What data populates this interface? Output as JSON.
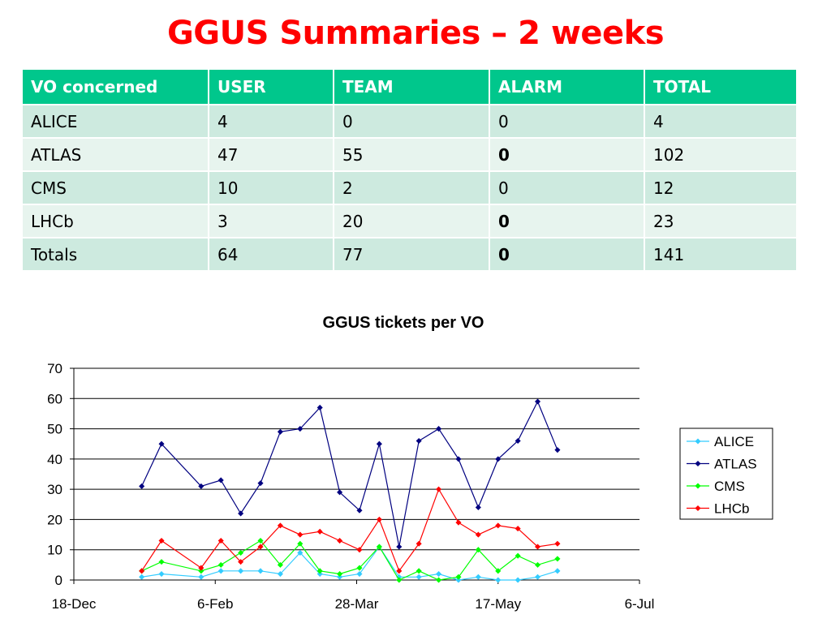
{
  "title": "GGUS Summaries – 2 weeks",
  "table": {
    "headers": [
      "VO concerned",
      "USER",
      "TEAM",
      "ALARM",
      "TOTAL"
    ],
    "rows": [
      {
        "vo": "ALICE",
        "user": "4",
        "team": "0",
        "alarm": "0",
        "total": "4",
        "alarm_bold": false
      },
      {
        "vo": "ATLAS",
        "user": "47",
        "team": "55",
        "alarm": "0",
        "total": "102",
        "alarm_bold": true
      },
      {
        "vo": "CMS",
        "user": "10",
        "team": "2",
        "alarm": "0",
        "total": "12",
        "alarm_bold": false
      },
      {
        "vo": "LHCb",
        "user": "3",
        "team": "20",
        "alarm": "0",
        "total": "23",
        "alarm_bold": true
      },
      {
        "vo": "Totals",
        "user": "64",
        "team": "77",
        "alarm": "0",
        "total": "141",
        "alarm_bold": true
      }
    ]
  },
  "colors": {
    "title": "#ff0000",
    "header_bg": "#00c78c",
    "row_dark": "#cdeadf",
    "row_light": "#e7f4ee",
    "ALICE": "#33ccff",
    "ATLAS": "#000080",
    "CMS": "#00ff00",
    "LHCb": "#ff0000"
  },
  "chart_data": {
    "type": "line",
    "title": "GGUS tickets per VO",
    "xlabel": "",
    "ylabel": "",
    "ylim": [
      0,
      70
    ],
    "yticks": [
      0,
      10,
      20,
      30,
      40,
      50,
      60,
      70
    ],
    "xlim": [
      "2009-12-18",
      "2010-07-06"
    ],
    "xticks": [
      {
        "date": "2009-12-18",
        "label": "18-Dec"
      },
      {
        "date": "2010-02-06",
        "label": "6-Feb"
      },
      {
        "date": "2010-03-28",
        "label": "28-Mar"
      },
      {
        "date": "2010-05-17",
        "label": "17-May"
      },
      {
        "date": "2010-07-06",
        "label": "6-Jul"
      }
    ],
    "grid": true,
    "legend": "right",
    "x": [
      "2010-01-11",
      "2010-01-18",
      "2010-02-01",
      "2010-02-08",
      "2010-02-15",
      "2010-02-22",
      "2010-03-01",
      "2010-03-08",
      "2010-03-15",
      "2010-03-22",
      "2010-03-29",
      "2010-04-05",
      "2010-04-12",
      "2010-04-19",
      "2010-04-26",
      "2010-05-03",
      "2010-05-10",
      "2010-05-17",
      "2010-05-24",
      "2010-05-31",
      "2010-06-07"
    ],
    "series": [
      {
        "name": "ALICE",
        "values": [
          1,
          2,
          1,
          3,
          3,
          3,
          2,
          9,
          2,
          1,
          2,
          11,
          1,
          1,
          2,
          0,
          1,
          0,
          0,
          1,
          3
        ]
      },
      {
        "name": "ATLAS",
        "values": [
          31,
          45,
          31,
          33,
          22,
          32,
          49,
          50,
          57,
          29,
          23,
          45,
          11,
          46,
          50,
          40,
          24,
          40,
          46,
          59,
          43
        ]
      },
      {
        "name": "CMS",
        "values": [
          3,
          6,
          3,
          5,
          9,
          13,
          5,
          12,
          3,
          2,
          4,
          11,
          0,
          3,
          0,
          1,
          10,
          3,
          8,
          5,
          7
        ]
      },
      {
        "name": "LHCb",
        "values": [
          3,
          13,
          4,
          13,
          6,
          11,
          18,
          15,
          16,
          13,
          10,
          20,
          3,
          12,
          30,
          19,
          15,
          18,
          17,
          11,
          12
        ]
      }
    ]
  }
}
